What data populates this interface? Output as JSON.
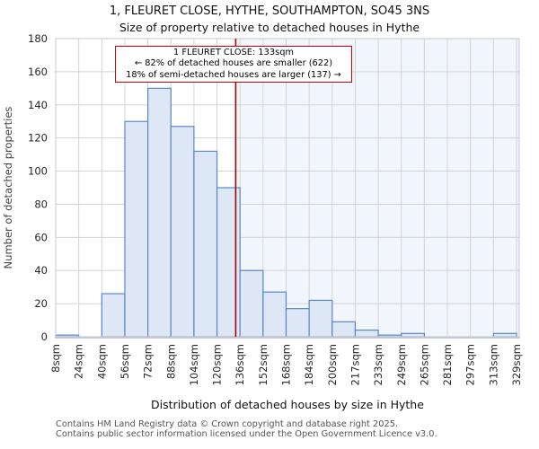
{
  "header": {
    "title": "1, FLEURET CLOSE, HYTHE, SOUTHAMPTON, SO45 3NS",
    "subtitle": "Size of property relative to detached houses in Hythe"
  },
  "annotation": {
    "line1": "1 FLEURET CLOSE: 133sqm",
    "line2": "← 82% of detached houses are smaller (622)",
    "line3": "18% of semi-detached houses are larger (137) →"
  },
  "footer": {
    "line1": "Contains HM Land Registry data © Crown copyright and database right 2025.",
    "line2": "Contains public sector information licensed under the Open Government Licence v3.0."
  },
  "chart_data": {
    "type": "bar",
    "title": "1, FLEURET CLOSE, HYTHE, SOUTHAMPTON, SO45 3NS",
    "subtitle": "Size of property relative to detached houses in Hythe",
    "xlabel": "Distribution of detached houses by size in Hythe",
    "ylabel": "Number of detached properties",
    "bin_edges_sqm": [
      8,
      24,
      40,
      56,
      72,
      88,
      104,
      120,
      136,
      152,
      168,
      184,
      200,
      217,
      233,
      249,
      265,
      281,
      297,
      313,
      329
    ],
    "x_tick_labels": [
      "8sqm",
      "24sqm",
      "40sqm",
      "56sqm",
      "72sqm",
      "88sqm",
      "104sqm",
      "120sqm",
      "136sqm",
      "152sqm",
      "168sqm",
      "184sqm",
      "200sqm",
      "217sqm",
      "233sqm",
      "249sqm",
      "265sqm",
      "281sqm",
      "297sqm",
      "313sqm",
      "329sqm"
    ],
    "values": [
      1,
      0,
      26,
      130,
      150,
      127,
      112,
      90,
      40,
      27,
      17,
      22,
      9,
      4,
      1,
      2,
      0,
      0,
      0,
      2
    ],
    "ylim": [
      0,
      180
    ],
    "y_ticks": [
      0,
      20,
      40,
      60,
      80,
      100,
      120,
      140,
      160,
      180
    ],
    "grid": true,
    "legend": "none",
    "marker_value_sqm": 133,
    "colors": {
      "bar_fill": "#dde7f5",
      "bar_stroke": "#5b87c5",
      "marker_line": "#aa0000",
      "annotation_border": "#cc0000",
      "shade_right_of_marker": "#f1f5fc",
      "grid_line": "#d3d3d3",
      "axis_line": "#c3c8d2",
      "tick_text": "#262626"
    }
  }
}
